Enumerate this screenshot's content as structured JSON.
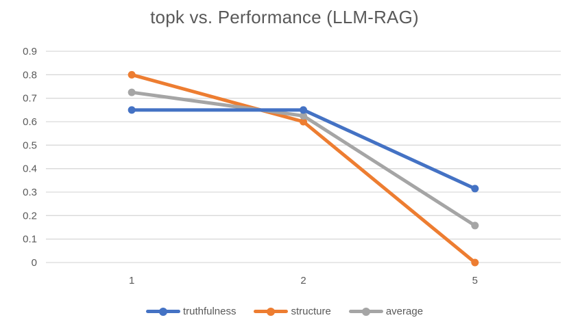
{
  "chart_data": {
    "type": "line",
    "title": "topk vs. Performance (LLM-RAG)",
    "categories": [
      "1",
      "2",
      "5"
    ],
    "series": [
      {
        "name": "truthfulness",
        "color": "#4472C4",
        "values": [
          0.65,
          0.65,
          0.315
        ]
      },
      {
        "name": "structure",
        "color": "#ED7D31",
        "values": [
          0.8,
          0.6,
          0
        ]
      },
      {
        "name": "average",
        "color": "#A5A5A5",
        "values": [
          0.725,
          0.625,
          0.1575
        ]
      }
    ],
    "ylim": [
      0,
      0.9
    ],
    "yticks": [
      "0",
      "0.1",
      "0.2",
      "0.3",
      "0.4",
      "0.5",
      "0.6",
      "0.7",
      "0.8",
      "0.9"
    ],
    "xlabel": "",
    "ylabel": "",
    "grid": true,
    "legend_position": "bottom",
    "gridline_color": "#D9D9D9",
    "text_color": "#595959"
  }
}
